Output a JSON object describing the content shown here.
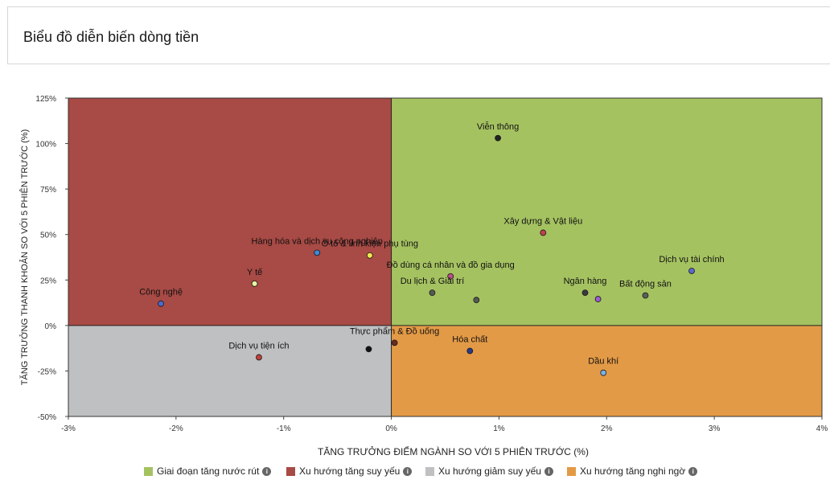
{
  "header": {
    "title": "Biểu đồ diễn biến dòng tiền"
  },
  "chart_data": {
    "type": "scatter",
    "title": "",
    "xlabel": "TĂNG TRƯỞNG ĐIỂM NGÀNH SO VỚI 5 PHIÊN TRƯỚC (%)",
    "ylabel": "TĂNG TRƯỞNG THANH KHOẢN SO VỚI 5 PHIÊN TRƯỚC (%)",
    "xlim": [
      -3,
      4
    ],
    "ylim": [
      -50,
      125
    ],
    "x_ticks": [
      -3,
      -2,
      -1,
      0,
      1,
      2,
      3,
      4
    ],
    "x_tick_labels": [
      "-3%",
      "-2%",
      "-1%",
      "0%",
      "1%",
      "2%",
      "3%",
      "4%"
    ],
    "y_ticks": [
      -50,
      -25,
      0,
      25,
      50,
      75,
      100,
      125
    ],
    "y_tick_labels": [
      "-50%",
      "-25%",
      "0%",
      "25%",
      "50%",
      "75%",
      "100%",
      "125%"
    ],
    "quadrants": [
      {
        "name": "Giai đoạn tăng nước rút",
        "color": "#a5c261",
        "x_sign": "positive",
        "y_sign": "positive"
      },
      {
        "name": "Xu hướng tăng suy yếu",
        "color": "#a84a45",
        "x_sign": "negative",
        "y_sign": "positive"
      },
      {
        "name": "Xu hướng giảm suy yếu",
        "color": "#bfc0c2",
        "x_sign": "negative",
        "y_sign": "negative"
      },
      {
        "name": "Xu hướng tăng nghi ngờ",
        "color": "#e39a46",
        "x_sign": "positive",
        "y_sign": "negative"
      }
    ],
    "points": [
      {
        "label": "Viễn thông",
        "x": 0.99,
        "y": 103,
        "color": "#222222"
      },
      {
        "label": "Xây dựng & Vật liệu",
        "x": 1.41,
        "y": 51,
        "color": "#c2404f"
      },
      {
        "label": "Dịch vụ tài chính",
        "x": 2.79,
        "y": 30,
        "color": "#5a6ad0"
      },
      {
        "label": "Ngân hàng",
        "x": 1.8,
        "y": 18,
        "color": "#3a3a3a"
      },
      {
        "label": "Bất động sản",
        "x": 2.36,
        "y": 16.5,
        "color": "#5a5f5a"
      },
      {
        "label": "",
        "x": 1.92,
        "y": 14.5,
        "color": "#9a5fd0"
      },
      {
        "label": "Đồ dùng cá nhân và đồ gia dụng",
        "x": 0.55,
        "y": 27,
        "color": "#c0508a"
      },
      {
        "label": "Du lịch & Giải trí",
        "x": 0.38,
        "y": 18,
        "color": "#555a52"
      },
      {
        "label": "",
        "x": 0.79,
        "y": 14,
        "color": "#555a52"
      },
      {
        "label": "Hàng hóa và dịch vụ công nghiệp",
        "x": -0.69,
        "y": 40,
        "color": "#3a8ad8"
      },
      {
        "label": "Ô tô & linh kiện phụ tùng",
        "x": -0.2,
        "y": 38.5,
        "color": "#f2e84a"
      },
      {
        "label": "Y tế",
        "x": -1.27,
        "y": 23,
        "color": "#e8f5a0"
      },
      {
        "label": "Công nghệ",
        "x": -2.14,
        "y": 12,
        "color": "#4a6ad0"
      },
      {
        "label": "Thực phẩm & Đồ uống",
        "x": 0.03,
        "y": -9.5,
        "color": "#6a2a20"
      },
      {
        "label": "",
        "x": -0.21,
        "y": -13,
        "color": "#111111"
      },
      {
        "label": "Dịch vụ tiện ích",
        "x": -1.23,
        "y": -17.5,
        "color": "#c0403a"
      },
      {
        "label": "Hóa chất",
        "x": 0.73,
        "y": -14,
        "color": "#2a3a8a"
      },
      {
        "label": "Dầu khí",
        "x": 1.97,
        "y": -26,
        "color": "#7ab0e8"
      }
    ]
  },
  "legend": {
    "items": [
      {
        "label": "Giai đoạn tăng nước rút",
        "color": "#a5c261"
      },
      {
        "label": "Xu hướng tăng suy yếu",
        "color": "#a84a45"
      },
      {
        "label": "Xu hướng giảm suy yếu",
        "color": "#bfc0c2"
      },
      {
        "label": "Xu hướng tăng nghi ngờ",
        "color": "#e39a46"
      }
    ],
    "info_icon": "info-icon"
  }
}
